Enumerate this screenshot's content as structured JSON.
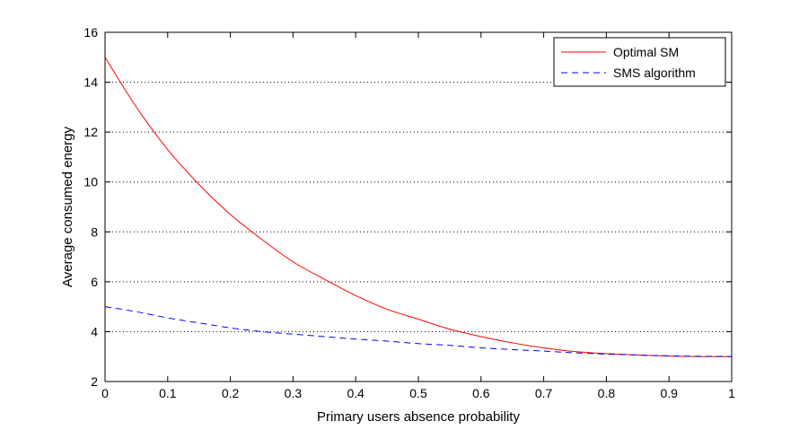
{
  "chart_data": {
    "type": "line",
    "title": "",
    "xlabel": "Primary users absence probability",
    "ylabel": "Average consumed energy",
    "xlim": [
      0,
      1
    ],
    "ylim": [
      2,
      16
    ],
    "xticks": [
      0,
      0.1,
      0.2,
      0.3,
      0.4,
      0.5,
      0.6,
      0.7,
      0.8,
      0.9,
      1
    ],
    "xtick_labels": [
      "0",
      "0.1",
      "0.2",
      "0.3",
      "0.4",
      "0.5",
      "0.6",
      "0.7",
      "0.8",
      "0.9",
      "1"
    ],
    "yticks": [
      2,
      4,
      6,
      8,
      10,
      12,
      14,
      16
    ],
    "ytick_labels": [
      "2",
      "4",
      "6",
      "8",
      "10",
      "12",
      "14",
      "16"
    ],
    "grid": "horizontal dotted",
    "legend_position": "top-right",
    "x": [
      0,
      0.05,
      0.1,
      0.15,
      0.2,
      0.25,
      0.3,
      0.35,
      0.4,
      0.45,
      0.5,
      0.55,
      0.6,
      0.65,
      0.7,
      0.75,
      0.8,
      0.85,
      0.9,
      0.95,
      1
    ],
    "series": [
      {
        "name": "Optimal SM",
        "color": "#ff0000",
        "dash": "solid",
        "values": [
          15.0,
          13.0,
          11.3,
          9.9,
          8.7,
          7.7,
          6.8,
          6.1,
          5.45,
          4.9,
          4.5,
          4.1,
          3.8,
          3.55,
          3.35,
          3.2,
          3.12,
          3.06,
          3.02,
          3.0,
          3.0
        ]
      },
      {
        "name": "SMS algorithm",
        "color": "#0000ff",
        "dash": "dashed",
        "values": [
          5.0,
          4.8,
          4.55,
          4.35,
          4.15,
          4.0,
          3.9,
          3.8,
          3.7,
          3.62,
          3.52,
          3.45,
          3.35,
          3.28,
          3.22,
          3.15,
          3.1,
          3.06,
          3.03,
          3.01,
          3.0
        ]
      }
    ]
  }
}
